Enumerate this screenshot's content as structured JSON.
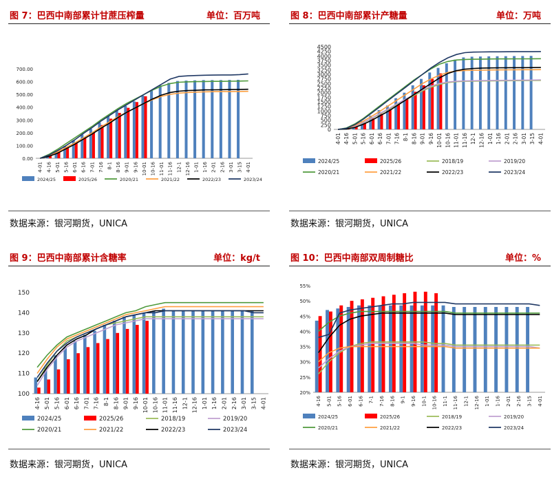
{
  "source_label": "数据来源：银河期货，UNICA",
  "colors": {
    "2024/25": "#4f81bd",
    "2025/26": "#ff0000",
    "2018/19": "#9bbb59",
    "2019/20": "#c0a0d0",
    "2020/21": "#4f9a3c",
    "2021/22": "#ff9f40",
    "2022/23": "#000000",
    "2023/24": "#1f3864"
  },
  "chart_data": [
    {
      "id": "fig7",
      "type": "bar",
      "title": "图 7：巴西中南部累计甘蔗压榨量",
      "unit": "单位：百万吨",
      "categories": [
        "4-01",
        "4-16",
        "5-01",
        "5-16",
        "6-01",
        "6-16",
        "7-01",
        "7-16",
        "8-1",
        "8-16",
        "9-01",
        "9-16",
        "10-01",
        "10-16",
        "11-01",
        "11-16",
        "12-1",
        "12-16",
        "1-01",
        "1-16",
        "2-01",
        "2-16",
        "3-01",
        "3-15",
        "4-01"
      ],
      "y_ticks": [
        "0.00",
        "100.00",
        "200.00",
        "300.00",
        "400.00",
        "500.00",
        "600.00",
        "700.00"
      ],
      "ylim": [
        0,
        700
      ],
      "bars": [
        {
          "name": "2024/25",
          "values": [
            0,
            25,
            55,
            95,
            140,
            185,
            230,
            280,
            330,
            375,
            410,
            445,
            490,
            530,
            570,
            590,
            605,
            608,
            610,
            612,
            612,
            612,
            613,
            614,
            null
          ]
        },
        {
          "name": "2025/26",
          "values": [
            2,
            20,
            48,
            85,
            125,
            165,
            205,
            260,
            310,
            355,
            395,
            440,
            485,
            null,
            null,
            null,
            null,
            null,
            null,
            null,
            null,
            null,
            null,
            null,
            null
          ]
        }
      ],
      "lines": [
        {
          "name": "2020/21",
          "values": [
            0,
            30,
            70,
            115,
            160,
            205,
            250,
            300,
            345,
            390,
            430,
            465,
            500,
            535,
            565,
            585,
            595,
            598,
            600,
            601,
            602,
            602,
            603,
            604,
            606
          ]
        },
        {
          "name": "2021/22",
          "values": [
            0,
            20,
            50,
            85,
            120,
            160,
            200,
            245,
            285,
            325,
            360,
            395,
            430,
            460,
            485,
            500,
            510,
            515,
            518,
            520,
            521,
            522,
            522,
            523,
            524
          ]
        },
        {
          "name": "2022/23",
          "values": [
            0,
            15,
            40,
            75,
            110,
            150,
            190,
            235,
            275,
            320,
            360,
            395,
            430,
            465,
            495,
            515,
            525,
            530,
            532,
            535,
            536,
            537,
            538,
            539,
            540
          ]
        },
        {
          "name": "2023/24",
          "values": [
            0,
            25,
            60,
            100,
            145,
            195,
            240,
            290,
            335,
            380,
            420,
            460,
            500,
            540,
            580,
            620,
            640,
            645,
            648,
            650,
            651,
            652,
            652,
            655,
            660
          ]
        }
      ],
      "legend": [
        "2024/25",
        "2025/26",
        "2020/21",
        "2021/22",
        "2022/23",
        "2023/24"
      ]
    },
    {
      "id": "fig8",
      "type": "bar",
      "title": "图 8：巴西中南部累计产糖量",
      "unit": "单位：万吨",
      "categories": [
        "4-01",
        "4-16",
        "5-01",
        "5-16",
        "6-01",
        "6-16",
        "7-01",
        "7-16",
        "8-1",
        "8-16",
        "9-01",
        "9-16",
        "10-01",
        "10-16",
        "11-01",
        "11-16",
        "12-1",
        "12-16",
        "1-01",
        "1-16",
        "2-01",
        "2-16",
        "3-01",
        "3-15",
        "4-01"
      ],
      "y_ticks": [
        "0",
        "250",
        "500",
        "750",
        "1000",
        "1250",
        "1500",
        "1750",
        "2000",
        "2250",
        "2500",
        "2750",
        "3000",
        "3250",
        "3500",
        "3750",
        "4000",
        "4250",
        "4500"
      ],
      "ylim": [
        0,
        4500
      ],
      "bars": [
        {
          "name": "2024/25",
          "values": [
            null,
            50,
            200,
            450,
            750,
            1050,
            1300,
            1700,
            2000,
            2400,
            2750,
            3100,
            3350,
            3600,
            3800,
            3920,
            3960,
            3970,
            3980,
            3985,
            3990,
            3995,
            3998,
            4005,
            null
          ]
        },
        {
          "name": "2025/26",
          "values": [
            null,
            30,
            150,
            350,
            600,
            850,
            1100,
            1400,
            1700,
            2050,
            2400,
            2750,
            3050,
            null,
            null,
            null,
            null,
            null,
            null,
            null,
            null,
            null,
            null,
            null,
            null
          ]
        }
      ],
      "lines": [
        {
          "name": "2018/19",
          "values": [
            0,
            40,
            160,
            360,
            600,
            850,
            1100,
            1350,
            1600,
            1850,
            2100,
            2300,
            2450,
            2550,
            2600,
            2620,
            2630,
            2635,
            2640,
            2645,
            2650,
            2655,
            2660,
            2665,
            2670
          ]
        },
        {
          "name": "2019/20",
          "values": [
            0,
            40,
            170,
            380,
            620,
            880,
            1130,
            1400,
            1650,
            1900,
            2150,
            2350,
            2500,
            2580,
            2620,
            2640,
            2650,
            2660,
            2665,
            2670,
            2675,
            2680,
            2685,
            2690,
            2700
          ]
        },
        {
          "name": "2020/21",
          "values": [
            0,
            80,
            300,
            600,
            950,
            1300,
            1650,
            2000,
            2350,
            2700,
            3000,
            3300,
            3550,
            3700,
            3780,
            3810,
            3820,
            3830,
            3835,
            3840,
            3840,
            3845,
            3845,
            3848,
            3850
          ]
        },
        {
          "name": "2021/22",
          "values": [
            0,
            50,
            220,
            450,
            720,
            1000,
            1300,
            1600,
            1900,
            2200,
            2500,
            2750,
            2950,
            3100,
            3180,
            3210,
            3220,
            3230,
            3235,
            3240,
            3245,
            3248,
            3250,
            3252,
            3255
          ]
        },
        {
          "name": "2022/23",
          "values": [
            0,
            20,
            110,
            280,
            500,
            750,
            1000,
            1300,
            1600,
            1900,
            2200,
            2500,
            2800,
            3050,
            3200,
            3280,
            3320,
            3340,
            3350,
            3355,
            3360,
            3362,
            3365,
            3368,
            3370
          ]
        },
        {
          "name": "2023/24",
          "values": [
            0,
            60,
            260,
            560,
            900,
            1250,
            1600,
            1950,
            2300,
            2650,
            3000,
            3350,
            3650,
            3900,
            4080,
            4180,
            4210,
            4220,
            4225,
            4228,
            4230,
            4232,
            4233,
            4235,
            4240
          ]
        }
      ],
      "legend": [
        "2024/25",
        "2025/26",
        "2018/19",
        "2019/20",
        "2020/21",
        "2021/22",
        "2022/23",
        "2023/24"
      ]
    },
    {
      "id": "fig9",
      "type": "bar",
      "title": "图 9：巴西中南部累计含糖率",
      "unit": "单位：kg/t",
      "categories": [
        "4-16",
        "5-01",
        "5-16",
        "6-01",
        "6-16",
        "7-01",
        "7-16",
        "8-1",
        "8-16",
        "9-01",
        "9-16",
        "10-01",
        "10-16",
        "11-01",
        "11-16",
        "12-1",
        "12-16",
        "1-01",
        "1-16",
        "2-01",
        "2-16",
        "3-01",
        "3-15",
        "4-01"
      ],
      "y_ticks": [
        "100",
        "110",
        "120",
        "130",
        "140",
        "150"
      ],
      "ylim": [
        100,
        150
      ],
      "bars": [
        {
          "name": "2024/25",
          "values": [
            108,
            113,
            119,
            123,
            126,
            129,
            131,
            134,
            136,
            138,
            139,
            140,
            141,
            142,
            141,
            141,
            141,
            141,
            141,
            141,
            141,
            141,
            141,
            null
          ]
        },
        {
          "name": "2025/26",
          "values": [
            103,
            107,
            112,
            117,
            120,
            123,
            125,
            127,
            130,
            132,
            134,
            136,
            null,
            null,
            null,
            null,
            null,
            null,
            null,
            null,
            null,
            null,
            null,
            null
          ]
        }
      ],
      "lines": [
        {
          "name": "2018/19",
          "values": [
            106,
            114,
            121,
            126,
            128,
            130,
            132,
            134,
            135,
            136,
            137,
            138,
            138,
            138,
            138,
            138,
            138,
            138,
            138,
            138,
            138,
            138,
            138,
            138
          ]
        },
        {
          "name": "2019/20",
          "values": [
            104,
            112,
            118,
            123,
            126,
            128,
            130,
            132,
            134,
            135,
            136,
            137,
            137,
            137,
            137,
            137,
            137,
            137,
            137,
            137,
            137,
            137,
            137,
            137
          ]
        },
        {
          "name": "2020/21",
          "values": [
            113,
            119,
            124,
            128,
            130,
            132,
            134,
            136,
            138,
            140,
            141,
            143,
            144,
            145,
            145,
            145,
            145,
            145,
            145,
            145,
            145,
            145,
            145,
            145
          ]
        },
        {
          "name": "2021/22",
          "values": [
            110,
            117,
            123,
            127,
            129,
            131,
            133,
            135,
            137,
            139,
            140,
            141,
            142,
            143,
            143,
            143,
            143,
            143,
            143,
            143,
            143,
            143,
            143,
            143
          ]
        },
        {
          "name": "2022/23",
          "values": [
            106,
            113,
            119,
            124,
            127,
            129,
            132,
            134,
            136,
            138,
            139,
            140,
            141,
            141,
            141,
            141,
            141,
            141,
            141,
            141,
            141,
            141,
            141,
            141
          ]
        },
        {
          "name": "2023/24",
          "values": [
            108,
            115,
            121,
            125,
            128,
            130,
            132,
            134,
            136,
            138,
            139,
            140,
            140,
            141,
            141,
            141,
            141,
            141,
            141,
            141,
            141,
            141,
            140,
            140
          ]
        }
      ],
      "legend": [
        "2024/25",
        "2025/26",
        "2018/19",
        "2019/20",
        "2020/21",
        "2021/22",
        "2022/23",
        "2023/24"
      ]
    },
    {
      "id": "fig10",
      "type": "bar",
      "title": "图 10：巴西中南部双周制糖比",
      "unit": "单位：%",
      "categories": [
        "4-16",
        "5-01",
        "5-16",
        "6-01",
        "6-16",
        "7-1",
        "7-16",
        "8-16",
        "9-1",
        "9-16",
        "10-1",
        "10-16",
        "11-1",
        "11-16",
        "12-1",
        "12-16",
        "1-01",
        "1-16",
        "2-01",
        "2-16",
        "3-15",
        "4-01"
      ],
      "y_ticks": [
        "20%",
        "25%",
        "30%",
        "35%",
        "40%",
        "45%",
        "50%",
        "55%"
      ],
      "ylim": [
        20,
        55
      ],
      "bars": [
        {
          "name": "2024/25",
          "values": [
            43.5,
            47,
            47.5,
            48,
            48.5,
            48.5,
            48.5,
            48.5,
            48.5,
            48.5,
            48.5,
            48.5,
            48.5,
            48,
            48,
            48,
            48,
            48,
            48,
            48,
            48,
            null
          ]
        },
        {
          "name": "2025/26",
          "values": [
            45,
            46.5,
            48.5,
            50,
            50.5,
            51,
            51.5,
            52,
            52.5,
            53,
            53,
            52.5,
            null,
            null,
            null,
            null,
            null,
            null,
            null,
            null,
            null,
            null
          ]
        }
      ],
      "lines": [
        {
          "name": "2018/19",
          "values": [
            26,
            30,
            33,
            35,
            36,
            36.5,
            36.5,
            36.5,
            36.5,
            36.5,
            36.5,
            36,
            36,
            35.5,
            35.5,
            35.5,
            35.5,
            35.5,
            35.5,
            35.5,
            35.5,
            35.5
          ]
        },
        {
          "name": "2019/20",
          "values": [
            28,
            31,
            33.5,
            35,
            35.5,
            36,
            36,
            36,
            36,
            36,
            35.5,
            35.5,
            35.5,
            35,
            35,
            35,
            35,
            35,
            35,
            35,
            35,
            34.5
          ]
        },
        {
          "name": "2020/21",
          "values": [
            40,
            43,
            45,
            46,
            46.5,
            46.5,
            46.5,
            46.5,
            46.5,
            46.5,
            46.5,
            46.5,
            46.5,
            46,
            46,
            46,
            46,
            46,
            46,
            46,
            46,
            46
          ]
        },
        {
          "name": "2021/22",
          "values": [
            30,
            33,
            34.5,
            35,
            35,
            35,
            35,
            35,
            35,
            35,
            35,
            35,
            35,
            34.5,
            34.5,
            34.5,
            34.5,
            34.5,
            34.5,
            34.5,
            34.5,
            34.5
          ]
        },
        {
          "name": "2022/23",
          "values": [
            33,
            38,
            42,
            44,
            45,
            45.5,
            46,
            46,
            46,
            46,
            46,
            46,
            46,
            45.5,
            45.5,
            45.5,
            45.5,
            45.5,
            45.5,
            45.5,
            45.5,
            45.5
          ]
        },
        {
          "name": "2023/24",
          "values": [
            38,
            39,
            46,
            47,
            47.5,
            48,
            48.5,
            49,
            49,
            49.5,
            49.5,
            49.5,
            49.5,
            49,
            49,
            49,
            49,
            49,
            49,
            49,
            49,
            48.5
          ]
        }
      ],
      "legend": [
        "2024/25",
        "2025/26",
        "2018/19",
        "2019/20",
        "2020/21",
        "2021/22",
        "2022/23",
        "2023/24"
      ]
    }
  ]
}
